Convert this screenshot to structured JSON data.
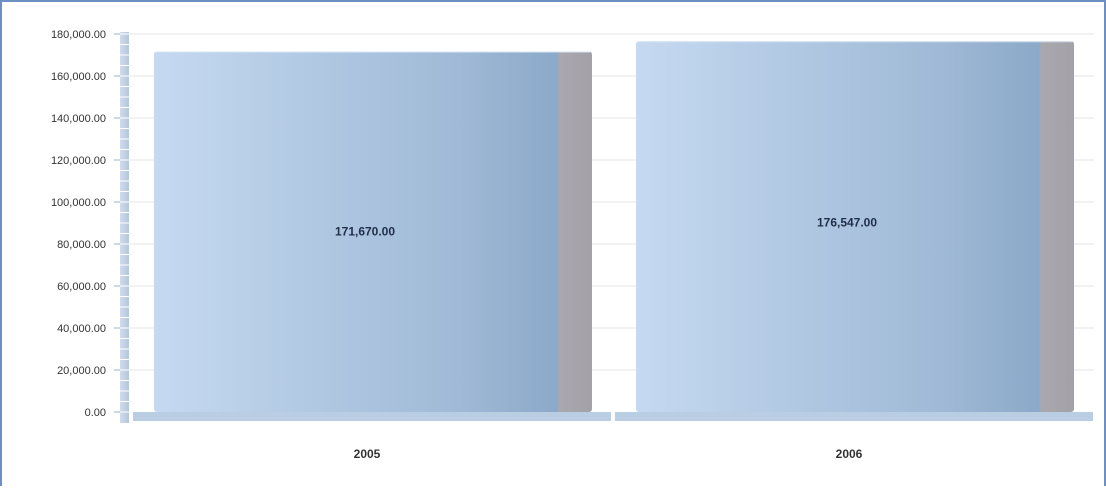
{
  "chart_data": {
    "type": "bar",
    "title": "",
    "xlabel": "",
    "ylabel": "",
    "categories": [
      "2005",
      "2006"
    ],
    "values": [
      171670.0,
      176547.0
    ],
    "data_labels": [
      "171,670.00",
      "176,547.00"
    ],
    "ylim": [
      0,
      180000
    ],
    "yticks": [
      0,
      20000,
      40000,
      60000,
      80000,
      100000,
      120000,
      140000,
      160000,
      180000
    ],
    "ytick_labels": [
      "0.00",
      "20,000.00",
      "40,000.00",
      "60,000.00",
      "80,000.00",
      "100,000.00",
      "120,000.00",
      "140,000.00",
      "160,000.00",
      "180,000.00"
    ],
    "grid": true,
    "legend": "none",
    "colors": {
      "bar_light": "#c3d7ef",
      "bar_mid": "#a7c0dc",
      "bar_dark": "#8aa8c8",
      "bar_side": "#a9a7ad",
      "floor": "#b9cde3",
      "grid": "#e6e6e6",
      "frame": "#6d8fc4"
    }
  }
}
